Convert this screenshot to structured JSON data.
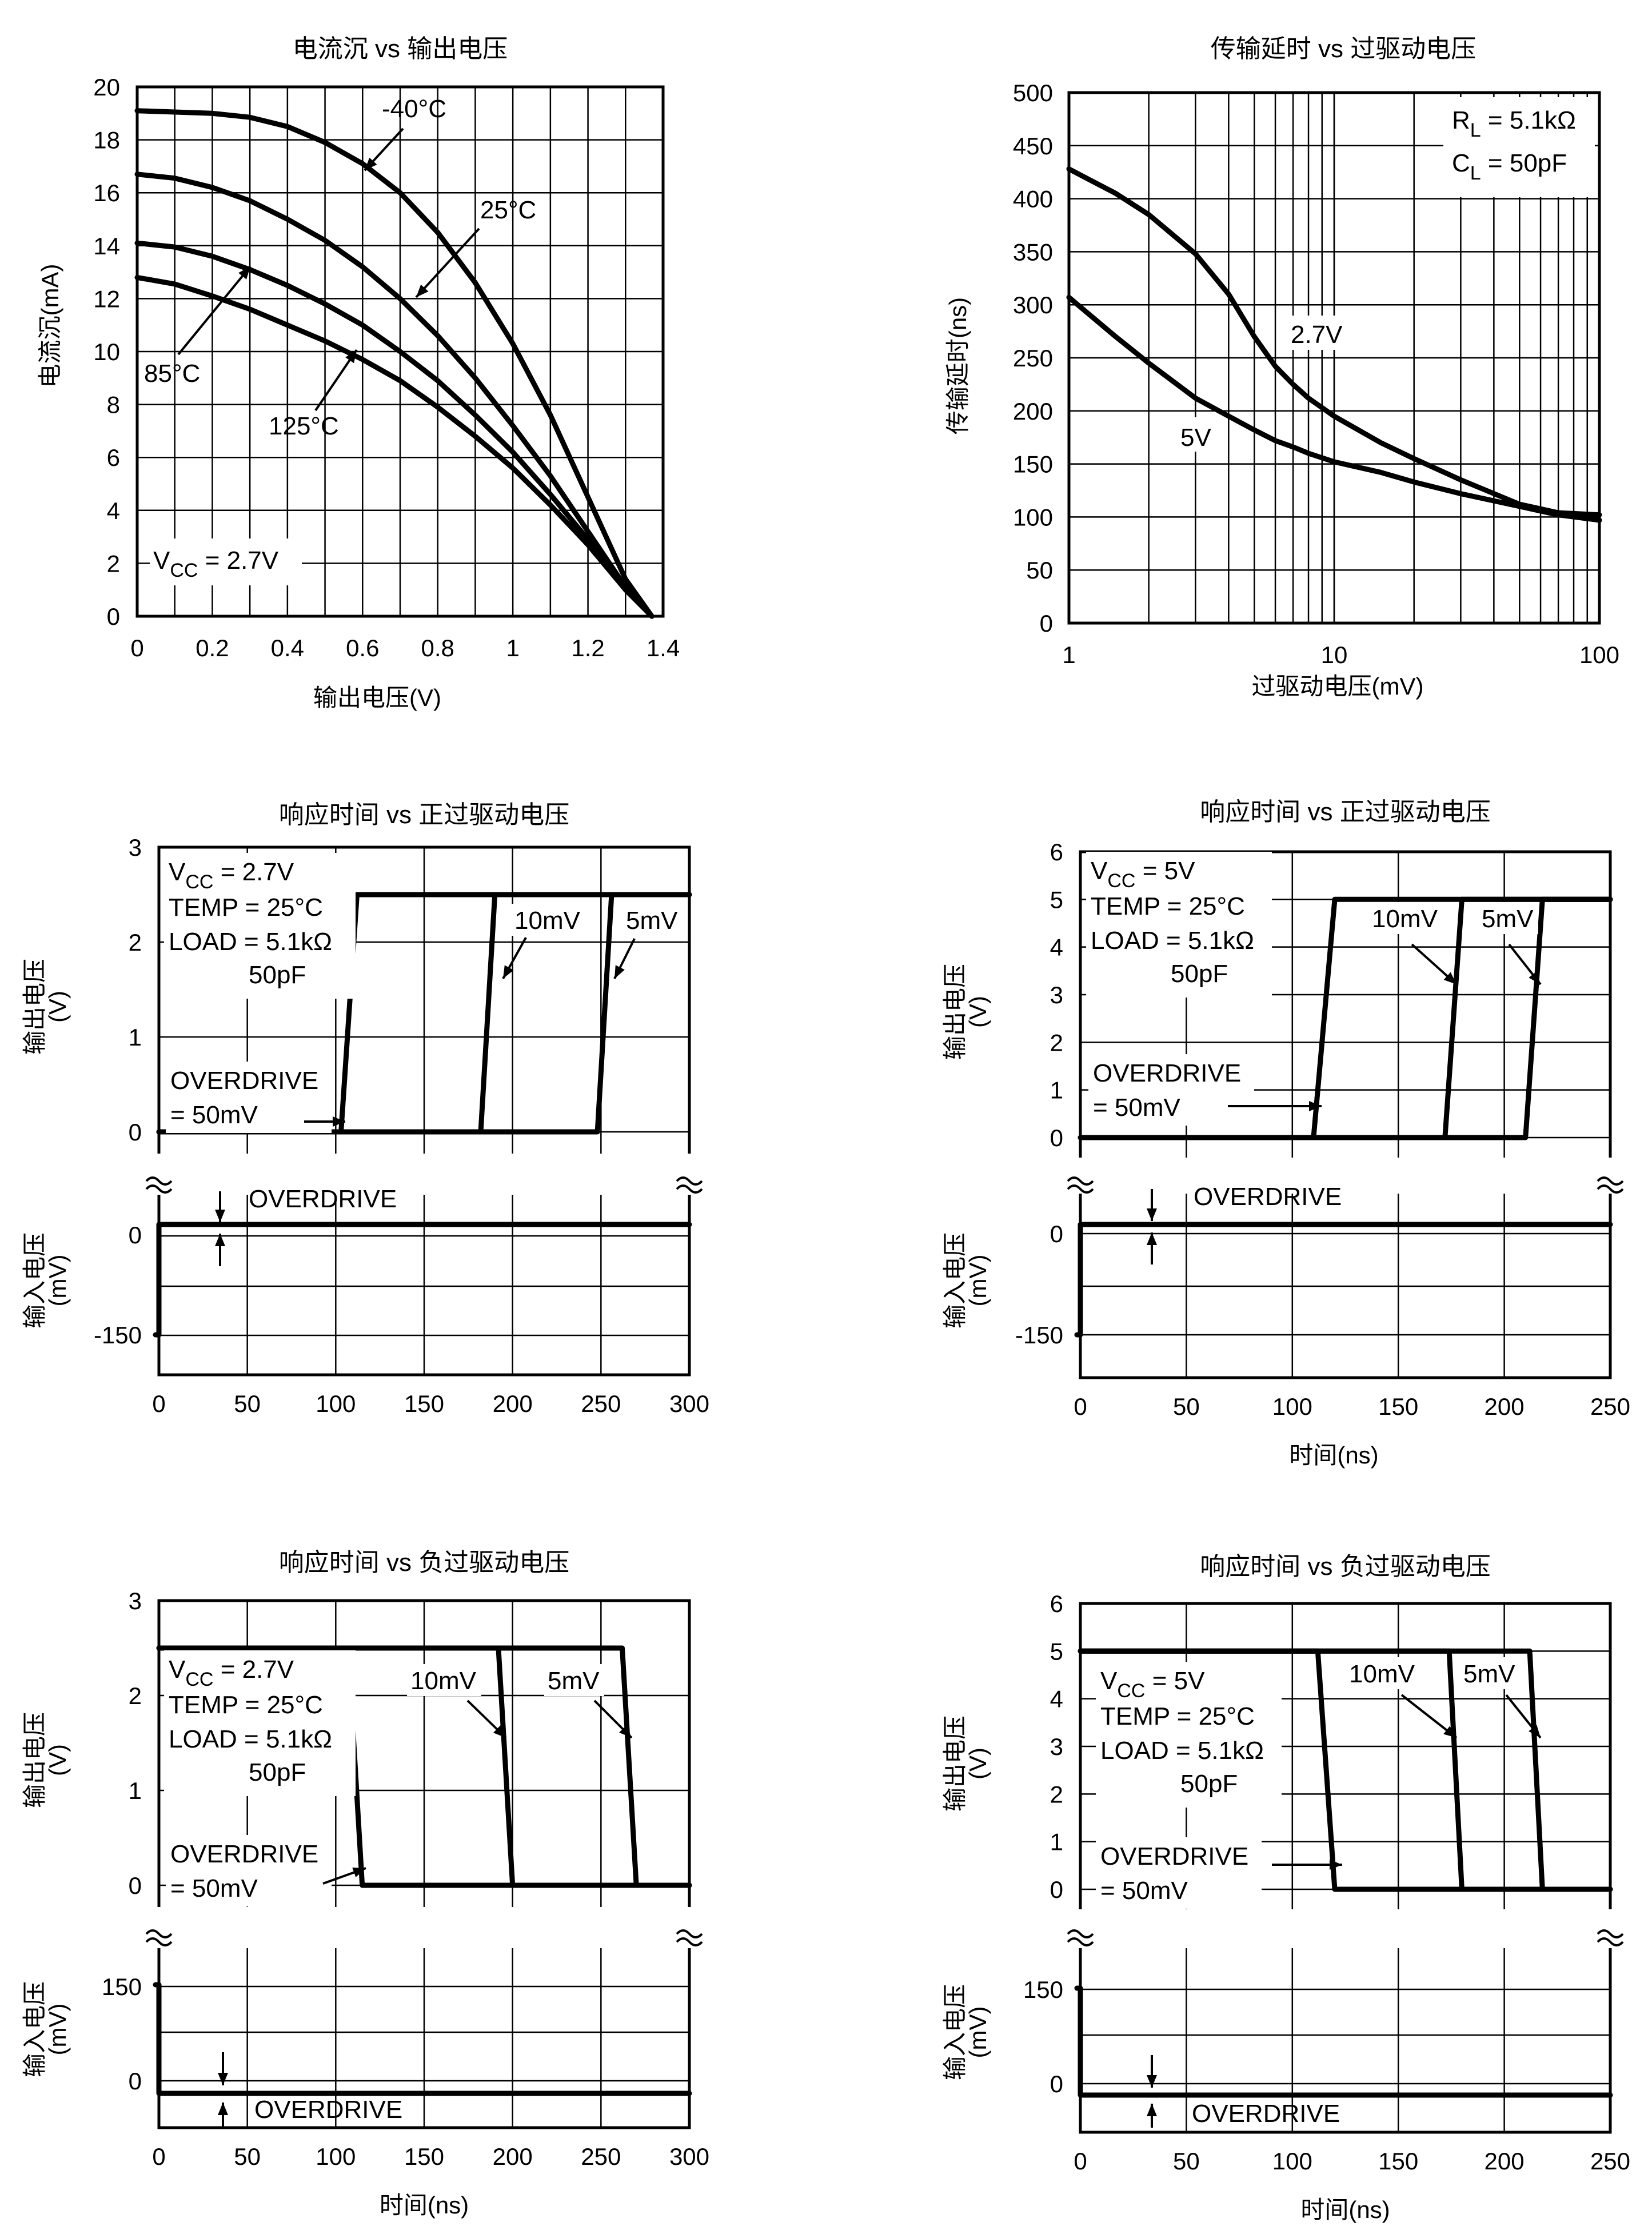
{
  "chart_data": [
    {
      "id": "sink",
      "type": "line",
      "title": "电流沉 vs 输出电压",
      "xlabel": "输出电压(V)",
      "ylabel": "电流沉(mA)",
      "xlim": [
        0,
        1.4
      ],
      "ylim": [
        0,
        20
      ],
      "xticks": [
        "0",
        "0.2",
        "0.4",
        "0.6",
        "0.8",
        "1",
        "1.2",
        "1.4"
      ],
      "yticks": [
        "0",
        "2",
        "4",
        "6",
        "8",
        "10",
        "12",
        "14",
        "16",
        "18",
        "20"
      ],
      "grid": true,
      "series": [
        {
          "name": "-40°C",
          "points": [
            [
              0,
              19.1
            ],
            [
              0.1,
              19.05
            ],
            [
              0.2,
              19.0
            ],
            [
              0.3,
              18.85
            ],
            [
              0.4,
              18.5
            ],
            [
              0.5,
              17.9
            ],
            [
              0.6,
              17.1
            ],
            [
              0.7,
              16.0
            ],
            [
              0.8,
              14.5
            ],
            [
              0.9,
              12.6
            ],
            [
              1.0,
              10.3
            ],
            [
              1.1,
              7.6
            ],
            [
              1.2,
              4.5
            ],
            [
              1.3,
              1.4
            ],
            [
              1.37,
              0
            ]
          ]
        },
        {
          "name": "25°C",
          "points": [
            [
              0,
              16.7
            ],
            [
              0.1,
              16.55
            ],
            [
              0.2,
              16.2
            ],
            [
              0.3,
              15.7
            ],
            [
              0.4,
              15.0
            ],
            [
              0.5,
              14.2
            ],
            [
              0.6,
              13.2
            ],
            [
              0.7,
              12.0
            ],
            [
              0.8,
              10.6
            ],
            [
              0.9,
              9.0
            ],
            [
              1.0,
              7.2
            ],
            [
              1.1,
              5.3
            ],
            [
              1.2,
              3.2
            ],
            [
              1.3,
              1.1
            ],
            [
              1.37,
              0
            ]
          ]
        },
        {
          "name": "85°C",
          "points": [
            [
              0,
              14.1
            ],
            [
              0.1,
              13.95
            ],
            [
              0.2,
              13.6
            ],
            [
              0.3,
              13.1
            ],
            [
              0.4,
              12.5
            ],
            [
              0.5,
              11.8
            ],
            [
              0.6,
              11.0
            ],
            [
              0.7,
              10.0
            ],
            [
              0.8,
              8.9
            ],
            [
              0.9,
              7.6
            ],
            [
              1.0,
              6.2
            ],
            [
              1.1,
              4.6
            ],
            [
              1.2,
              2.9
            ],
            [
              1.3,
              1.0
            ],
            [
              1.37,
              0
            ]
          ]
        },
        {
          "name": "125°C",
          "points": [
            [
              0,
              12.8
            ],
            [
              0.1,
              12.55
            ],
            [
              0.2,
              12.1
            ],
            [
              0.3,
              11.6
            ],
            [
              0.4,
              11.0
            ],
            [
              0.5,
              10.4
            ],
            [
              0.6,
              9.7
            ],
            [
              0.7,
              8.9
            ],
            [
              0.8,
              7.9
            ],
            [
              0.9,
              6.8
            ],
            [
              1.0,
              5.6
            ],
            [
              1.1,
              4.2
            ],
            [
              1.2,
              2.7
            ],
            [
              1.3,
              1.0
            ],
            [
              1.37,
              0
            ]
          ]
        }
      ],
      "annotations": {
        "vcc_pre": "V",
        "vcc_sub": "CC",
        "vcc_post": " = 2.7V"
      }
    },
    {
      "id": "delay",
      "type": "line",
      "title": "传输延时 vs 过驱动电压",
      "xlabel": "过驱动电压(mV)",
      "ylabel": "传输延时(ns)",
      "xscale": "log",
      "xlim": [
        1,
        100
      ],
      "ylim": [
        0,
        500
      ],
      "xticks": [
        "1",
        "10",
        "100"
      ],
      "yticks": [
        "0",
        "50",
        "100",
        "150",
        "200",
        "250",
        "300",
        "350",
        "400",
        "450",
        "500"
      ],
      "grid": true,
      "series": [
        {
          "name": "2.7V",
          "points": [
            [
              1,
              428
            ],
            [
              1.5,
              405
            ],
            [
              2,
              385
            ],
            [
              3,
              348
            ],
            [
              4,
              310
            ],
            [
              5,
              270
            ],
            [
              6,
              242
            ],
            [
              7,
              225
            ],
            [
              8,
              212
            ],
            [
              10,
              195
            ],
            [
              15,
              170
            ],
            [
              20,
              155
            ],
            [
              30,
              135
            ],
            [
              50,
              112
            ],
            [
              70,
              104
            ],
            [
              100,
              102
            ]
          ]
        },
        {
          "name": "5V",
          "points": [
            [
              1,
              307
            ],
            [
              1.5,
              270
            ],
            [
              2,
              245
            ],
            [
              3,
              212
            ],
            [
              4,
              195
            ],
            [
              5,
              182
            ],
            [
              6,
              172
            ],
            [
              7,
              166
            ],
            [
              8,
              160
            ],
            [
              10,
              152
            ],
            [
              15,
              142
            ],
            [
              20,
              133
            ],
            [
              30,
              122
            ],
            [
              50,
              110
            ],
            [
              70,
              102
            ],
            [
              100,
              97
            ]
          ]
        }
      ],
      "annotations": {
        "rl_pre": "R",
        "rl_sub": "L",
        "rl_post": " = 5.1kΩ",
        "cl_pre": "C",
        "cl_sub": "L",
        "cl_post": " = 50pF"
      }
    },
    {
      "id": "pos27",
      "type": "line",
      "title": "响应时间 vs 正过驱动电压",
      "xlabel": "",
      "ylabel_top": "输出电压",
      "ylabel_top_unit": "(V)",
      "ylabel_bottom": "输入电压",
      "ylabel_bottom_unit": "(mV)",
      "xlim": [
        0,
        300
      ],
      "top_ylim": [
        0,
        3
      ],
      "xticks": [
        "0",
        "50",
        "100",
        "150",
        "200",
        "250",
        "300"
      ],
      "top_yticks": [
        "0",
        "1",
        "2",
        "3"
      ],
      "bottom_yticks": [
        "0",
        "-150"
      ],
      "high_level": 2.5,
      "series": [
        {
          "name": "50mV",
          "points": [
            [
              0,
              0
            ],
            [
              103,
              0
            ],
            [
              112,
              2.5
            ],
            [
              300,
              2.5
            ]
          ]
        },
        {
          "name": "10mV",
          "points": [
            [
              0,
              0
            ],
            [
              182,
              0
            ],
            [
              190,
              2.5
            ],
            [
              300,
              2.5
            ]
          ]
        },
        {
          "name": "5mV",
          "points": [
            [
              0,
              0
            ],
            [
              248,
              0
            ],
            [
              256,
              2.5
            ],
            [
              300,
              2.5
            ]
          ]
        }
      ],
      "labels": {
        "vcc_pre": "V",
        "vcc_sub": "CC",
        "vcc_post": " = 2.7V",
        "temp": "TEMP = 25°C",
        "load": "LOAD = 5.1kΩ",
        "cap": "50pF",
        "od1": "OVERDRIVE",
        "od2": "= 50mV",
        "l10": "10mV",
        "l5": "5mV",
        "od_input": "OVERDRIVE"
      }
    },
    {
      "id": "pos5",
      "type": "line",
      "title": "响应时间 vs 正过驱动电压",
      "xlabel": "时间(ns)",
      "ylabel_top": "输出电压",
      "ylabel_top_unit": "(V)",
      "ylabel_bottom": "输入电压",
      "ylabel_bottom_unit": "(mV)",
      "xlim": [
        0,
        250
      ],
      "top_ylim": [
        0,
        6
      ],
      "xticks": [
        "0",
        "50",
        "100",
        "150",
        "200",
        "250"
      ],
      "top_yticks": [
        "0",
        "1",
        "2",
        "3",
        "4",
        "5",
        "6"
      ],
      "bottom_yticks": [
        "0",
        "-150"
      ],
      "high_level": 5,
      "series": [
        {
          "name": "50mV",
          "points": [
            [
              0,
              0
            ],
            [
              110,
              0
            ],
            [
              120,
              5
            ],
            [
              250,
              5
            ]
          ]
        },
        {
          "name": "10mV",
          "points": [
            [
              0,
              0
            ],
            [
              172,
              0
            ],
            [
              180,
              5
            ],
            [
              250,
              5
            ]
          ]
        },
        {
          "name": "5mV",
          "points": [
            [
              0,
              0
            ],
            [
              210,
              0
            ],
            [
              218,
              5
            ],
            [
              250,
              5
            ]
          ]
        }
      ],
      "labels": {
        "vcc_pre": "V",
        "vcc_sub": "CC",
        "vcc_post": " = 5V",
        "temp": "TEMP = 25°C",
        "load": "LOAD = 5.1kΩ",
        "cap": "50pF",
        "od1": "OVERDRIVE",
        "od2": "= 50mV",
        "l10": "10mV",
        "l5": "5mV",
        "od_input": "OVERDRIVE"
      }
    },
    {
      "id": "neg27",
      "type": "line",
      "title": "响应时间 vs 负过驱动电压",
      "xlabel": "时间(ns)",
      "ylabel_top": "输出电压",
      "ylabel_top_unit": "(V)",
      "ylabel_bottom": "输入电压",
      "ylabel_bottom_unit": "(mV)",
      "xlim": [
        0,
        300
      ],
      "top_ylim": [
        0,
        3
      ],
      "xticks": [
        "0",
        "50",
        "100",
        "150",
        "200",
        "250",
        "300"
      ],
      "top_yticks": [
        "0",
        "1",
        "2",
        "3"
      ],
      "bottom_yticks": [
        "150",
        "0"
      ],
      "high_level": 2.5,
      "series": [
        {
          "name": "50mV",
          "points": [
            [
              0,
              2.5
            ],
            [
              107,
              2.5
            ],
            [
              115,
              0
            ],
            [
              300,
              0
            ]
          ]
        },
        {
          "name": "10mV",
          "points": [
            [
              0,
              2.5
            ],
            [
              192,
              2.5
            ],
            [
              200,
              0
            ],
            [
              300,
              0
            ]
          ]
        },
        {
          "name": "5mV",
          "points": [
            [
              0,
              2.5
            ],
            [
              262,
              2.5
            ],
            [
              270,
              0
            ],
            [
              300,
              0
            ]
          ]
        }
      ],
      "labels": {
        "vcc_pre": "V",
        "vcc_sub": "CC",
        "vcc_post": " = 2.7V",
        "temp": "TEMP = 25°C",
        "load": "LOAD = 5.1kΩ",
        "cap": "50pF",
        "od1": "OVERDRIVE",
        "od2": "= 50mV",
        "l10": "10mV",
        "l5": "5mV",
        "od_input": "OVERDRIVE"
      }
    },
    {
      "id": "neg5",
      "type": "line",
      "title": "响应时间 vs 负过驱动电压",
      "xlabel": "时间(ns)",
      "ylabel_top": "输出电压",
      "ylabel_top_unit": "(V)",
      "ylabel_bottom": "输入电压",
      "ylabel_bottom_unit": "(mV)",
      "xlim": [
        0,
        250
      ],
      "top_ylim": [
        0,
        6
      ],
      "xticks": [
        "0",
        "50",
        "100",
        "150",
        "200",
        "250"
      ],
      "top_yticks": [
        "0",
        "1",
        "2",
        "3",
        "4",
        "5",
        "6"
      ],
      "bottom_yticks": [
        "150",
        "0"
      ],
      "high_level": 5,
      "series": [
        {
          "name": "50mV",
          "points": [
            [
              0,
              5
            ],
            [
              112,
              5
            ],
            [
              120,
              0
            ],
            [
              250,
              0
            ]
          ]
        },
        {
          "name": "10mV",
          "points": [
            [
              0,
              5
            ],
            [
              174,
              5
            ],
            [
              180,
              0
            ],
            [
              250,
              0
            ]
          ]
        },
        {
          "name": "5mV",
          "points": [
            [
              0,
              5
            ],
            [
              212,
              5
            ],
            [
              218,
              0
            ],
            [
              250,
              0
            ]
          ]
        }
      ],
      "labels": {
        "vcc_pre": "V",
        "vcc_sub": "CC",
        "vcc_post": " = 5V",
        "temp": "TEMP = 25°C",
        "load": "LOAD = 5.1kΩ",
        "cap": "50pF",
        "od1": "OVERDRIVE",
        "od2": "= 50mV",
        "l10": "10mV",
        "l5": "5mV",
        "od_input": "OVERDRIVE"
      }
    }
  ]
}
